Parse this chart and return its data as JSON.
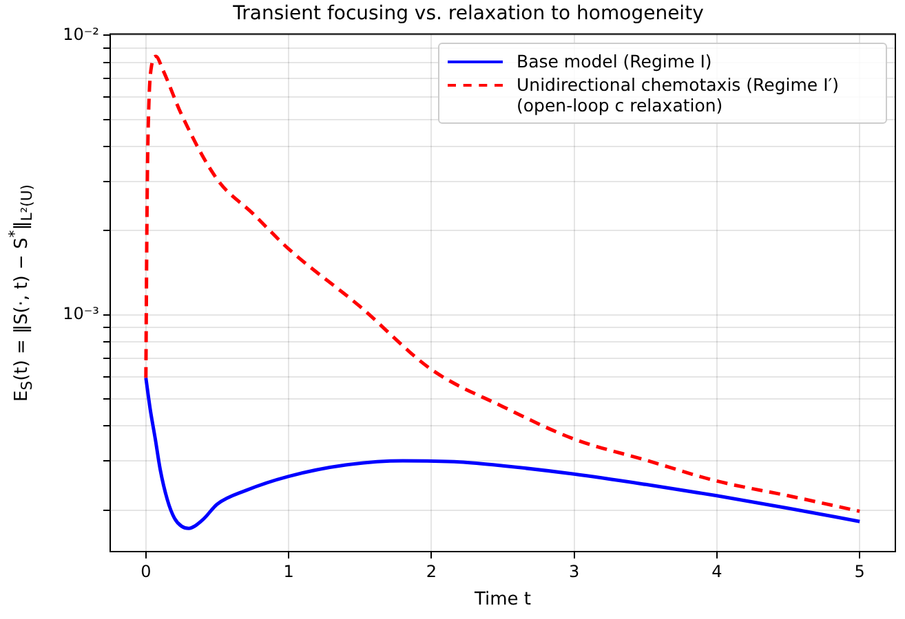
{
  "chart_data": {
    "type": "line",
    "title": "Transient focusing vs. relaxation to homogeneity",
    "xlabel": "Time t",
    "ylabel": "E$_{S}$(t) = ‖S(·, t) − S$^{*}$‖$_{L²(U)}$",
    "log": "y",
    "grid": true,
    "legend": "top right",
    "marker": "none",
    "xlim": [
      -0.25,
      5.25
    ],
    "xticks": [
      0,
      1,
      2,
      3,
      4,
      5
    ],
    "ylim": [
      0.000142,
      0.0101
    ],
    "yticks": [
      {
        "value": 0.0002,
        "label": null
      },
      {
        "value": 0.0003,
        "label": null
      },
      {
        "value": 0.0004,
        "label": null
      },
      {
        "value": 0.0005,
        "label": null
      },
      {
        "value": 0.0006,
        "label": null
      },
      {
        "value": 0.0007,
        "label": null
      },
      {
        "value": 0.0008,
        "label": null
      },
      {
        "value": 0.0009,
        "label": null
      },
      {
        "value": 0.001,
        "label": "10⁻³"
      },
      {
        "value": 0.002,
        "label": null
      },
      {
        "value": 0.003,
        "label": null
      },
      {
        "value": 0.004,
        "label": null
      },
      {
        "value": 0.005,
        "label": null
      },
      {
        "value": 0.006,
        "label": null
      },
      {
        "value": 0.007,
        "label": null
      },
      {
        "value": 0.008,
        "label": null
      },
      {
        "value": 0.009,
        "label": null
      },
      {
        "value": 0.01,
        "label": "10⁻²"
      }
    ],
    "series": [
      {
        "name": "Base model (Regime I)",
        "color": "#0000ff",
        "line_style": "solid",
        "x": [
          0,
          0.03,
          0.066,
          0.1,
          0.15,
          0.2,
          0.25,
          0.3,
          0.4,
          0.5,
          0.7,
          1,
          1.4,
          1.8,
          2.2,
          2.5,
          3,
          3.5,
          4,
          4.5,
          5
        ],
        "values": [
          0.000594,
          0.00046,
          0.000359,
          0.00028,
          0.000218,
          0.000187,
          0.000175,
          0.000172,
          0.000185,
          0.00021,
          0.000235,
          0.000264,
          0.00029,
          0.0003,
          0.000297,
          0.000288,
          0.000269,
          0.000247,
          0.000225,
          0.000203,
          0.000182
        ]
      },
      {
        "name": "Unidirectional chemotaxis (Regime I′) (open-loop c relaxation)",
        "color": "#ff0000",
        "line_style": "dashed",
        "x": [
          0,
          0.005,
          0.01,
          0.02,
          0.04,
          0.07,
          0.12,
          0.25,
          0.5,
          0.75,
          1,
          1.5,
          2,
          2.5,
          3,
          3.5,
          4,
          4.5,
          5
        ],
        "values": [
          0.000594,
          0.0015,
          0.003,
          0.0055,
          0.0078,
          0.0084,
          0.0075,
          0.0052,
          0.00305,
          0.0023,
          0.00172,
          0.00107,
          0.000637,
          0.000469,
          0.000359,
          0.000302,
          0.000254,
          0.000225,
          0.000198
        ]
      }
    ]
  }
}
